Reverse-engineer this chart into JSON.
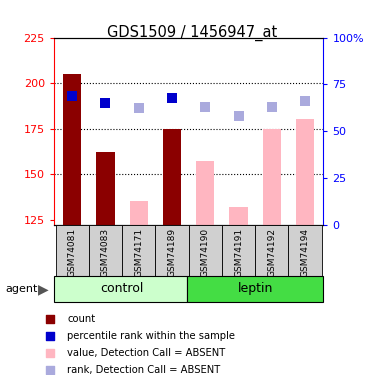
{
  "title": "GDS1509 / 1456947_at",
  "samples": [
    "GSM74081",
    "GSM74083",
    "GSM74171",
    "GSM74189",
    "GSM74190",
    "GSM74191",
    "GSM74192",
    "GSM74194"
  ],
  "bar_values_present": [
    205,
    162,
    null,
    175,
    null,
    null,
    null,
    null
  ],
  "bar_values_absent": [
    null,
    null,
    135,
    null,
    157,
    132,
    175,
    180
  ],
  "rank_squares_dark": [
    193,
    189,
    null,
    192,
    null,
    null,
    null,
    null
  ],
  "rank_squares_absent": [
    null,
    null,
    186,
    null,
    187,
    182,
    187,
    190
  ],
  "bar_color_dark": "#8B0000",
  "bar_color_absent": "#FFB6C1",
  "rank_color_dark": "#0000CC",
  "rank_color_absent": "#AAAADD",
  "ylim_left": [
    122,
    225
  ],
  "ylim_right": [
    0,
    100
  ],
  "yticks_left": [
    125,
    150,
    175,
    200,
    225
  ],
  "yticks_right": [
    0,
    25,
    50,
    75,
    100
  ],
  "ytick_labels_right": [
    "0",
    "25",
    "50",
    "75",
    "100%"
  ],
  "grid_lines": [
    150,
    175,
    200
  ],
  "control_color_light": "#CCFFCC",
  "leptin_color": "#44DD44",
  "bar_width": 0.55,
  "square_size": 45,
  "legend_items": [
    [
      "#8B0000",
      "count"
    ],
    [
      "#0000CC",
      "percentile rank within the sample"
    ],
    [
      "#FFB6C1",
      "value, Detection Call = ABSENT"
    ],
    [
      "#AAAADD",
      "rank, Detection Call = ABSENT"
    ]
  ]
}
